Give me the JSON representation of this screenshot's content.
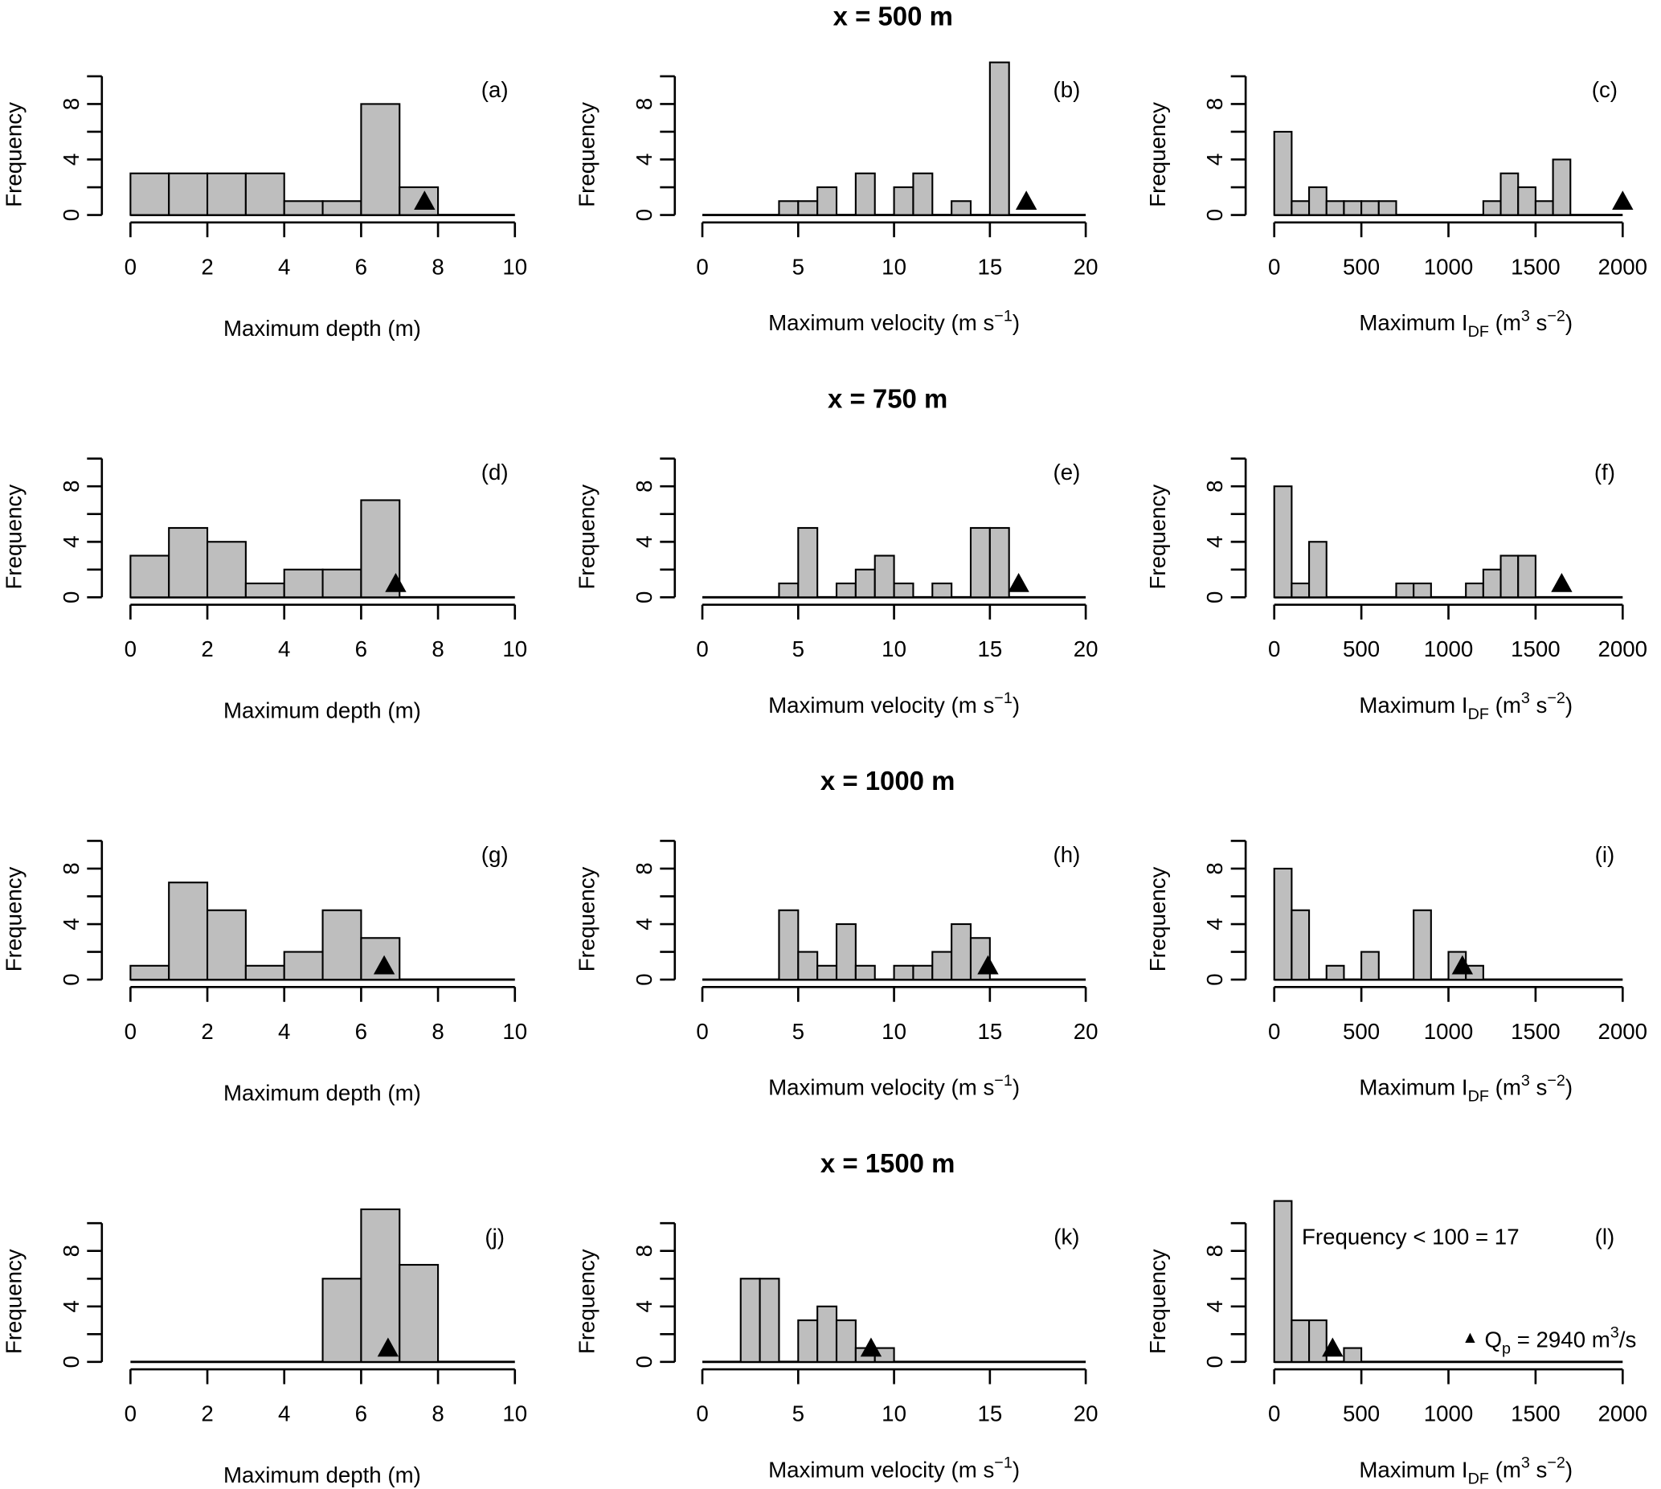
{
  "chart_data": {
    "type": "bar",
    "y_axis_label": "Frequency",
    "y_ticks": [
      0,
      4,
      8
    ],
    "bar_fill": "#bebebe",
    "marker": "filled-triangle",
    "rows": [
      {
        "title": "x = 500 m",
        "panels": [
          {
            "label": "(a)",
            "kind": "depth",
            "bin_start": 0,
            "bin_width": 1,
            "counts": [
              3,
              3,
              3,
              3,
              1,
              1,
              8,
              2,
              0,
              0
            ],
            "marker_x": 7.65
          },
          {
            "label": "(b)",
            "kind": "velocity",
            "bin_start": 0,
            "bin_width": 1,
            "counts": [
              0,
              0,
              0,
              0,
              1,
              1,
              2,
              0,
              3,
              0,
              2,
              3,
              0,
              1,
              0,
              11,
              0,
              0,
              0,
              0
            ],
            "marker_x": 16.9
          },
          {
            "label": "(c)",
            "kind": "idf",
            "bin_start": 0,
            "bin_width": 100,
            "counts": [
              6,
              1,
              2,
              1,
              1,
              1,
              1,
              0,
              0,
              0,
              0,
              0,
              1,
              3,
              2,
              1,
              4,
              0,
              0,
              0
            ],
            "marker_x": 2000
          }
        ]
      },
      {
        "title": "x = 750 m",
        "panels": [
          {
            "label": "(d)",
            "kind": "depth",
            "bin_start": 0,
            "bin_width": 1,
            "counts": [
              3,
              5,
              4,
              1,
              2,
              2,
              7,
              0,
              0,
              0
            ],
            "marker_x": 6.9
          },
          {
            "label": "(e)",
            "kind": "velocity",
            "bin_start": 0,
            "bin_width": 1,
            "counts": [
              0,
              0,
              0,
              0,
              1,
              5,
              0,
              1,
              2,
              3,
              1,
              0,
              1,
              0,
              5,
              5,
              0,
              0,
              0,
              0
            ],
            "marker_x": 16.5
          },
          {
            "label": "(f)",
            "kind": "idf",
            "bin_start": 0,
            "bin_width": 100,
            "counts": [
              8,
              1,
              4,
              0,
              0,
              0,
              0,
              1,
              1,
              0,
              0,
              1,
              2,
              3,
              3,
              0,
              0,
              0,
              0,
              0
            ],
            "marker_x": 1650
          }
        ]
      },
      {
        "title": "x = 1000 m",
        "panels": [
          {
            "label": "(g)",
            "kind": "depth",
            "bin_start": 0,
            "bin_width": 1,
            "counts": [
              1,
              7,
              5,
              1,
              2,
              5,
              3,
              0,
              0,
              0
            ],
            "marker_x": 6.6
          },
          {
            "label": "(h)",
            "kind": "velocity",
            "bin_start": 0,
            "bin_width": 1,
            "counts": [
              0,
              0,
              0,
              0,
              5,
              2,
              1,
              4,
              1,
              0,
              1,
              1,
              2,
              4,
              3,
              0,
              0,
              0,
              0,
              0
            ],
            "marker_x": 14.9
          },
          {
            "label": "(i)",
            "kind": "idf",
            "bin_start": 0,
            "bin_width": 100,
            "counts": [
              8,
              5,
              0,
              1,
              0,
              2,
              0,
              0,
              5,
              0,
              2,
              1,
              0,
              0,
              0,
              0,
              0,
              0,
              0,
              0
            ],
            "marker_x": 1080
          }
        ]
      },
      {
        "title": "x = 1500 m",
        "panels": [
          {
            "label": "(j)",
            "kind": "depth",
            "bin_start": 0,
            "bin_width": 1,
            "counts": [
              0,
              0,
              0,
              0,
              0,
              6,
              11,
              7,
              0,
              0
            ],
            "marker_x": 6.7
          },
          {
            "label": "(k)",
            "kind": "velocity",
            "bin_start": 0,
            "bin_width": 1,
            "counts": [
              0,
              0,
              6,
              6,
              0,
              3,
              4,
              3,
              1,
              1,
              0,
              0,
              0,
              0,
              0,
              0,
              0,
              0,
              0,
              0
            ],
            "marker_x": 8.8
          },
          {
            "label": "(l)",
            "kind": "idf",
            "bin_start": 0,
            "bin_width": 100,
            "counts": [
              17,
              3,
              3,
              0,
              1,
              0,
              0,
              0,
              0,
              0,
              0,
              0,
              0,
              0,
              0,
              0,
              0,
              0,
              0,
              0
            ],
            "marker_x": 335,
            "annotation": "Frequency < 100 = 17",
            "legend": {
              "symbol": "▲",
              "text_q": "Q",
              "text_sub": "p",
              "text_mid": " = 2940 m",
              "text_sup": "3",
              "text_end": "/s"
            }
          }
        ]
      }
    ],
    "axes": {
      "depth": {
        "xlim": [
          0,
          10
        ],
        "ticks": [
          0,
          2,
          4,
          6,
          8,
          10
        ],
        "xlabel": "Maximum depth (m)"
      },
      "velocity": {
        "xlim": [
          0,
          20
        ],
        "ticks": [
          0,
          5,
          10,
          15,
          20
        ],
        "xlabel_main": "Maximum velocity (m s",
        "xlabel_sup": "−1",
        "xlabel_end": ")"
      },
      "idf": {
        "xlim": [
          0,
          2000
        ],
        "ticks": [
          0,
          500,
          1000,
          1500,
          2000
        ],
        "xlabel_main": "Maximum I",
        "xlabel_sub": "DF",
        "xlabel_mid": " (m",
        "xlabel_sup1": "3",
        "xlabel_mid2": " s",
        "xlabel_sup2": "−2",
        "xlabel_end": ")"
      }
    },
    "ylim": [
      0,
      10
    ]
  }
}
